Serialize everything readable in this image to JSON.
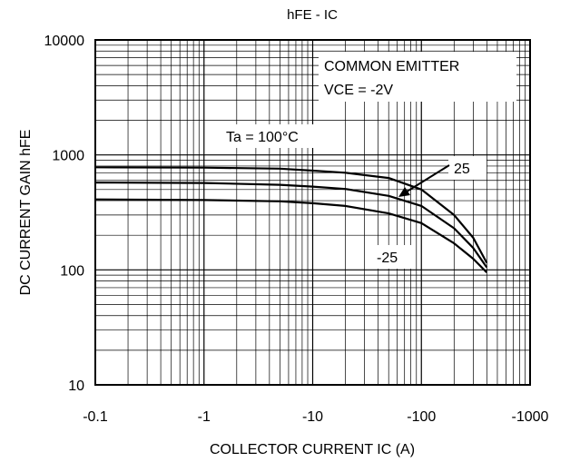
{
  "chart_data": {
    "type": "line",
    "title": "hFE - IC",
    "xlabel": "COLLECTOR CURRENT IC (A)",
    "ylabel": "DC CURRENT GAIN hFE",
    "x_scale": "log",
    "y_scale": "log",
    "x_ticks": [
      "-0.1",
      "-1",
      "-10",
      "-100",
      "-1000"
    ],
    "y_ticks": [
      "10",
      "100",
      "1000",
      "10000"
    ],
    "xlim": [
      -0.1,
      -1000
    ],
    "ylim": [
      10,
      10000
    ],
    "grid": true,
    "annotations": {
      "box_line1": "COMMON EMITTER",
      "box_line2": "VCE = -2V",
      "ta_label": "Ta = 100°C",
      "label_25": "25",
      "label_m25": "-25"
    },
    "series": [
      {
        "x": [
          -0.1,
          -1,
          -5,
          -10,
          -20,
          -50,
          -100,
          -200,
          -300,
          -400
        ],
        "y": [
          780,
          775,
          760,
          730,
          700,
          630,
          500,
          300,
          190,
          115
        ]
      },
      {
        "x": [
          -0.1,
          -1,
          -5,
          -10,
          -20,
          -50,
          -100,
          -200,
          -300,
          -400
        ],
        "y": [
          575,
          570,
          550,
          530,
          505,
          440,
          360,
          230,
          155,
          105
        ]
      },
      {
        "x": [
          -0.1,
          -1,
          -5,
          -10,
          -20,
          -50,
          -100,
          -200,
          -300,
          -400
        ],
        "y": [
          410,
          405,
          395,
          380,
          360,
          310,
          255,
          170,
          125,
          95
        ]
      }
    ]
  }
}
